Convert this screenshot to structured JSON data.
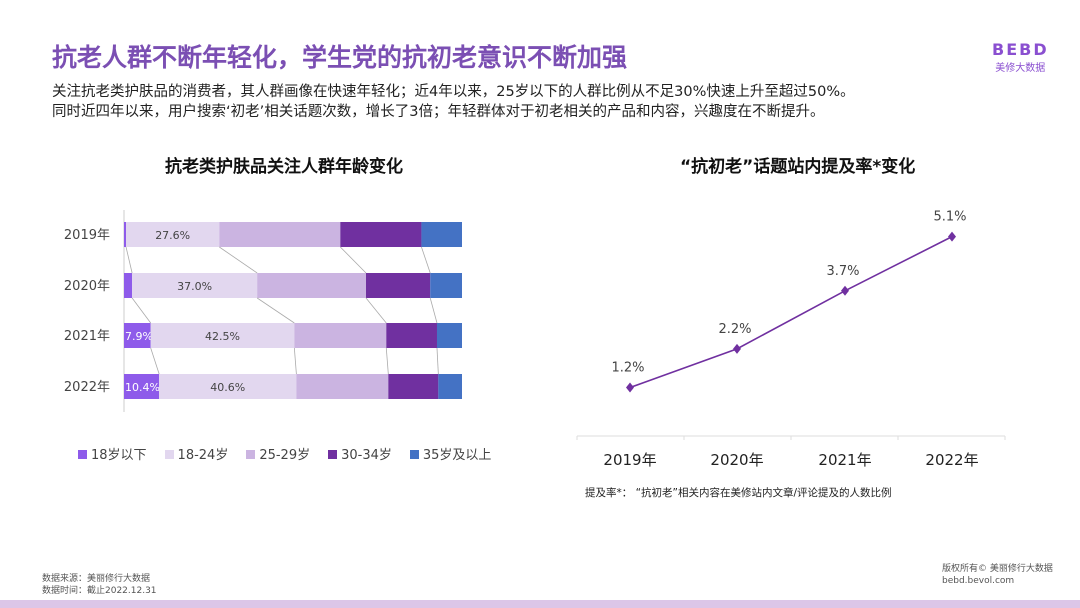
{
  "header": {
    "title": "抗老人群不断年轻化，学生党的抗初老意识不断加强",
    "subtitle_lines": [
      "关注抗老类护肤品的消费者，其人群画像在快速年轻化；近4年以来，25岁以下的人群比例从不足30%快速上升至超过50%。",
      "同时近四年以来，用户搜索‘初老’相关话题次数，增长了3倍；年轻群体对于初老相关的产品和内容，兴趣度在不断提升。"
    ]
  },
  "logo": {
    "mark": "BEBD",
    "name": "美修大数据"
  },
  "chart_data": [
    {
      "type": "bar",
      "orientation": "horizontal",
      "stacked": "percent",
      "title": "抗老类护肤品关注人群年龄变化",
      "categories": [
        "2019年",
        "2020年",
        "2021年",
        "2022年"
      ],
      "series": [
        {
          "name": "18岁以下",
          "color": "#8e5bea",
          "values": [
            0.6,
            2.4,
            7.9,
            10.4
          ],
          "labels": [
            "",
            "",
            "7.9%",
            "10.4%"
          ]
        },
        {
          "name": "18-24岁",
          "color": "#e2d7ef",
          "values": [
            27.6,
            37.0,
            42.5,
            40.6
          ],
          "labels": [
            "27.6%",
            "37.0%",
            "42.5%",
            "40.6%"
          ]
        },
        {
          "name": "25-29岁",
          "color": "#cbb4e1",
          "values": [
            35.8,
            32.2,
            27.2,
            27.2
          ],
          "labels": [
            "",
            "",
            "",
            ""
          ]
        },
        {
          "name": "30-34岁",
          "color": "#7030a0",
          "values": [
            24.0,
            19.0,
            15.0,
            14.8
          ],
          "labels": [
            "",
            "",
            "",
            ""
          ]
        },
        {
          "name": "35岁及以上",
          "color": "#4472c4",
          "values": [
            12.0,
            9.4,
            7.4,
            7.0
          ],
          "labels": [
            "",
            "",
            "",
            ""
          ]
        }
      ],
      "legend": "bottom"
    },
    {
      "type": "line",
      "title": "“抗初老”话题站内提及率*变化",
      "categories": [
        "2019年",
        "2020年",
        "2021年",
        "2022年"
      ],
      "values": [
        1.2,
        2.2,
        3.7,
        5.1
      ],
      "labels": [
        "1.2%",
        "2.2%",
        "3.7%",
        "5.1%"
      ],
      "color": "#7030a0",
      "ylim": [
        0,
        5.5
      ],
      "note": "提及率*：  “抗初老”相关内容在美修站内文章/评论提及的人数比例"
    }
  ],
  "footer": {
    "source": "数据来源：美丽修行大数据",
    "time": "数据时间：截止2022.12.31",
    "copyright": "版权所有© 美丽修行大数据",
    "site": "bebd.bevol.com"
  }
}
